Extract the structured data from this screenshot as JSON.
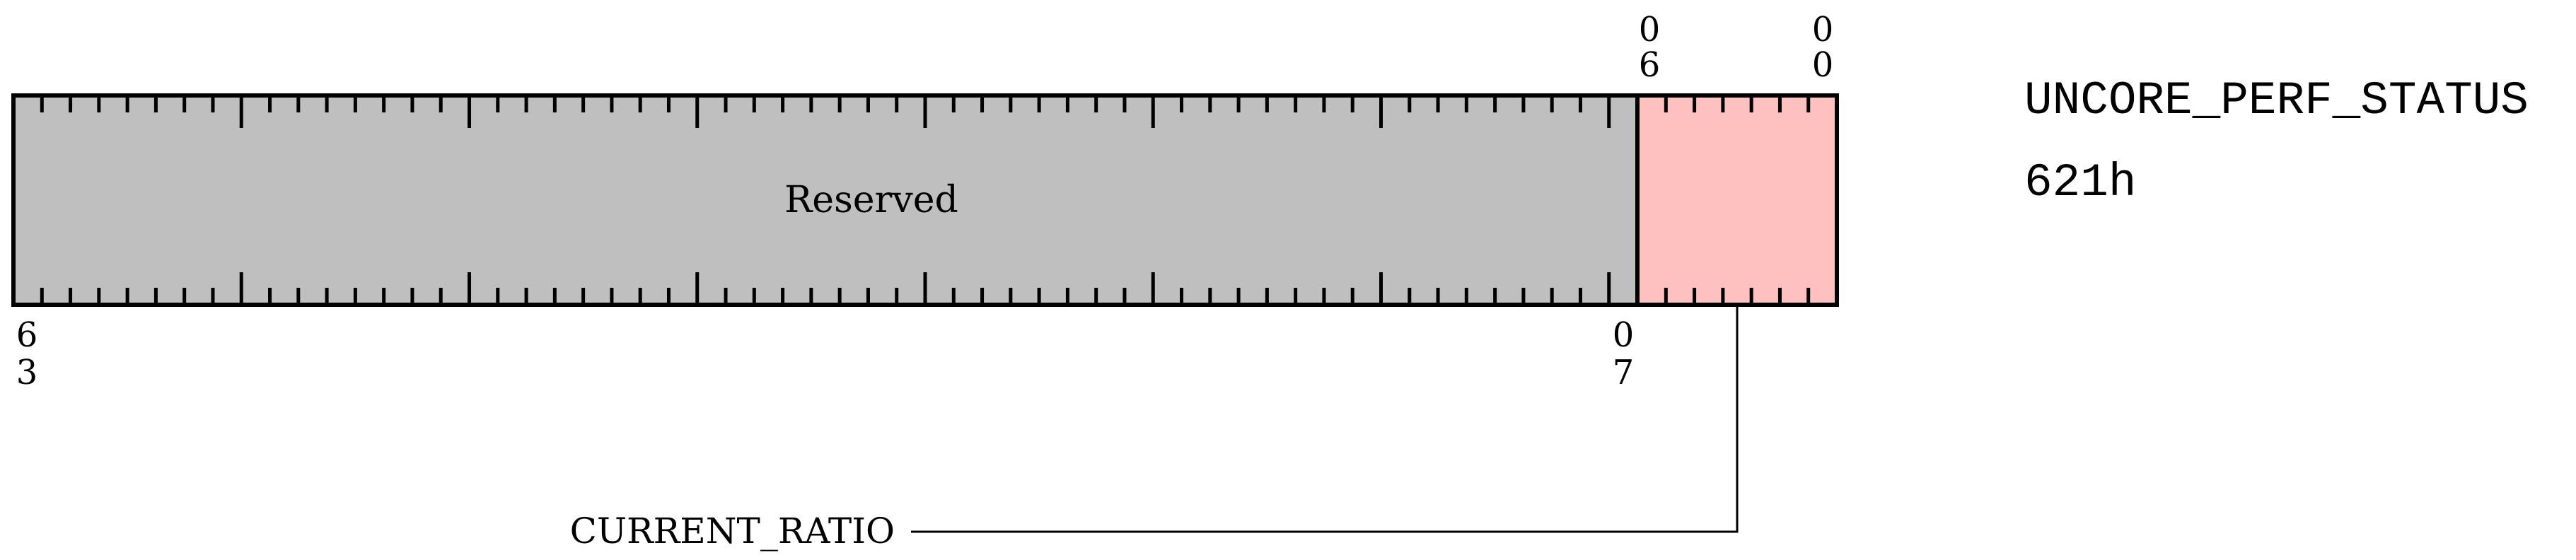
{
  "register": {
    "name": "UNCORE_PERF_STATUS",
    "address": "621h"
  },
  "bit_labels": {
    "top_left_digits": [
      "0",
      "6"
    ],
    "top_right_digits": [
      "0",
      "0"
    ],
    "bottom_left_digits": [
      "6",
      "3"
    ],
    "bottom_right_digits": [
      "0",
      "7"
    ]
  },
  "fields": [
    {
      "label": "Reserved",
      "msb": 63,
      "lsb": 7,
      "color": "#bfbfbf"
    },
    {
      "label": "CURRENT_RATIO",
      "msb": 6,
      "lsb": 0,
      "color": "#ffc0c0"
    }
  ]
}
